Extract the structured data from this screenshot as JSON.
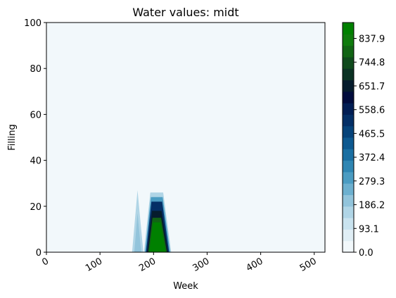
{
  "chart_data": {
    "type": "heatmap",
    "title": "Water values: midt",
    "xlabel": "Week",
    "ylabel": "Filling",
    "xlim": [
      0,
      520
    ],
    "ylim": [
      0,
      100
    ],
    "x_ticks": [
      "0",
      "100",
      "200",
      "300",
      "400",
      "500"
    ],
    "x_tick_values": [
      0,
      100,
      200,
      300,
      400,
      500
    ],
    "y_ticks": [
      "0",
      "20",
      "40",
      "60",
      "80",
      "100"
    ],
    "y_tick_values": [
      0,
      20,
      40,
      60,
      80,
      100
    ],
    "colorbar": {
      "min": 0.0,
      "max": 900,
      "tick_labels": [
        "0.0",
        "93.1",
        "186.2",
        "279.3",
        "372.4",
        "465.5",
        "558.6",
        "651.7",
        "744.8",
        "837.9"
      ],
      "tick_values": [
        0.0,
        93.1,
        186.2,
        279.3,
        372.4,
        465.5,
        558.6,
        651.7,
        744.8,
        837.9
      ],
      "colors": [
        "#f2f8fb",
        "#e0eef5",
        "#c9e3ef",
        "#b0d5e6",
        "#92c4db",
        "#6db0cf",
        "#4b9cc2",
        "#2f86b3",
        "#1a6fa2",
        "#0d5990",
        "#06437a",
        "#042f66",
        "#021e54",
        "#010c3d",
        "#061c2d",
        "#0b3223",
        "#0f4a1c",
        "#116414",
        "#0f7b0d",
        "#008000"
      ]
    },
    "regions": [
      {
        "name": "peak-left",
        "levels": [
          {
            "value": 150,
            "points": [
              [
                160,
                0
              ],
              [
                170,
                27
              ],
              [
                181,
                0
              ]
            ]
          },
          {
            "value": 210,
            "points": [
              [
                164,
                0
              ],
              [
                170,
                17
              ],
              [
                177,
                0
              ]
            ]
          }
        ]
      },
      {
        "name": "peak-main",
        "levels": [
          {
            "value": 150,
            "points": [
              [
                182,
                0
              ],
              [
                194,
                26
              ],
              [
                218,
                26
              ],
              [
                233,
                0
              ]
            ]
          },
          {
            "value": 300,
            "points": [
              [
                184,
                0
              ],
              [
                195,
                24
              ],
              [
                217,
                24
              ],
              [
                231,
                0
              ]
            ]
          },
          {
            "value": 500,
            "points": [
              [
                186,
                0
              ],
              [
                196,
                22
              ],
              [
                216,
                22
              ],
              [
                229,
                0
              ]
            ]
          },
          {
            "value": 650,
            "points": [
              [
                188,
                0
              ],
              [
                197,
                18
              ],
              [
                215,
                18
              ],
              [
                227,
                0
              ]
            ]
          },
          {
            "value": 800,
            "points": [
              [
                190,
                0
              ],
              [
                198,
                15
              ],
              [
                214,
                15
              ],
              [
                225,
                0
              ]
            ]
          },
          {
            "value": 880,
            "points": [
              [
                192,
                0
              ],
              [
                199,
                13
              ],
              [
                213,
                13
              ],
              [
                223,
                0
              ]
            ]
          }
        ]
      }
    ],
    "background_value": 0
  }
}
